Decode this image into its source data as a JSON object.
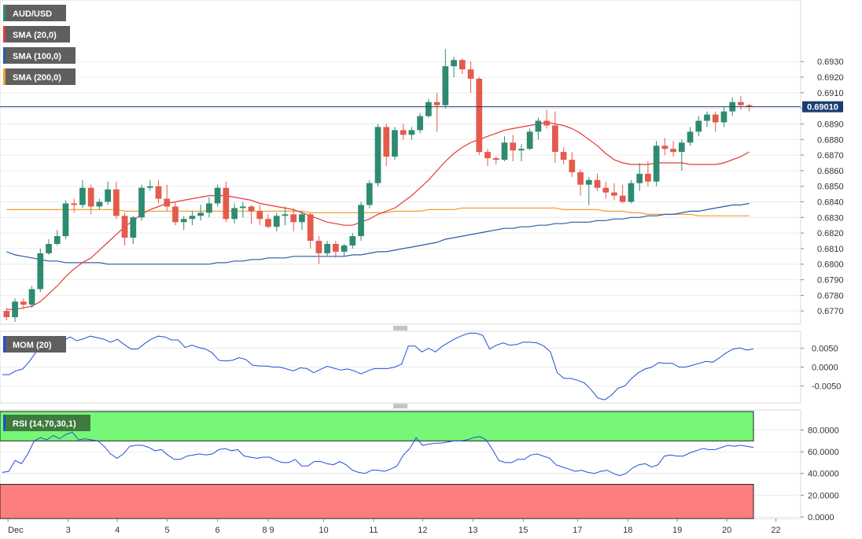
{
  "colors": {
    "up": "#2e8b72",
    "down": "#e45a4c",
    "sma20": "#e53935",
    "sma100": "#2b5aa8",
    "sma200": "#f0a030",
    "osc": "#1f4fd8",
    "grid": "#ececec",
    "rsi_over": "#76f876",
    "rsi_under": "#fd7e7e",
    "price_tag": "#1b3d72",
    "legend_bg": "#5f5f5f"
  },
  "chart_data": [
    {
      "type": "candlestick",
      "pane": "price",
      "y_ticks": [
        "0.6930",
        "0.6920",
        "0.6910",
        "0.6900",
        "0.6890",
        "0.6880",
        "0.6870",
        "0.6860",
        "0.6850",
        "0.6840",
        "0.6830",
        "0.6820",
        "0.6810",
        "0.6800",
        "0.6790",
        "0.6780",
        "0.6770"
      ],
      "ylim": [
        0.67615,
        0.69695
      ],
      "x_labels": [
        "Dec",
        "3",
        "4",
        "5",
        "6",
        "8 9",
        "10",
        "11",
        "12",
        "13",
        "15",
        "17",
        "18",
        "19",
        "20",
        "22"
      ],
      "current_price": "0.69010",
      "legend": [
        "AUD/USD",
        "SMA (20,0)",
        "SMA (100,0)",
        "SMA (200,0)"
      ],
      "candles": [
        [
          0.677,
          0.6772,
          0.6764,
          0.6766
        ],
        [
          0.6766,
          0.6778,
          0.6763,
          0.6776
        ],
        [
          0.6776,
          0.6778,
          0.6771,
          0.6774
        ],
        [
          0.6774,
          0.6786,
          0.6772,
          0.6784
        ],
        [
          0.6784,
          0.681,
          0.6782,
          0.6807
        ],
        [
          0.6807,
          0.6816,
          0.6806,
          0.6813
        ],
        [
          0.6813,
          0.6822,
          0.6812,
          0.6818
        ],
        [
          0.6818,
          0.6841,
          0.6816,
          0.6839
        ],
        [
          0.6839,
          0.6842,
          0.6833,
          0.6838
        ],
        [
          0.6838,
          0.6854,
          0.6836,
          0.6849
        ],
        [
          0.6849,
          0.6851,
          0.6832,
          0.6837
        ],
        [
          0.6837,
          0.6842,
          0.6835,
          0.684
        ],
        [
          0.684,
          0.6853,
          0.6838,
          0.6848
        ],
        [
          0.6848,
          0.6853,
          0.6829,
          0.6831
        ],
        [
          0.6831,
          0.6833,
          0.6812,
          0.6817
        ],
        [
          0.6817,
          0.6831,
          0.6813,
          0.683
        ],
        [
          0.683,
          0.6851,
          0.6828,
          0.6849
        ],
        [
          0.6849,
          0.6854,
          0.6847,
          0.685
        ],
        [
          0.685,
          0.6854,
          0.6839,
          0.6842
        ],
        [
          0.6842,
          0.6851,
          0.6834,
          0.6837
        ],
        [
          0.6837,
          0.684,
          0.6825,
          0.6827
        ],
        [
          0.6827,
          0.6831,
          0.6822,
          0.6829
        ],
        [
          0.6829,
          0.6834,
          0.6825,
          0.6831
        ],
        [
          0.6831,
          0.6838,
          0.6828,
          0.6833
        ],
        [
          0.6833,
          0.6843,
          0.683,
          0.6839
        ],
        [
          0.6839,
          0.6851,
          0.6837,
          0.6849
        ],
        [
          0.6849,
          0.6853,
          0.6827,
          0.6829
        ],
        [
          0.6829,
          0.6839,
          0.6826,
          0.6836
        ],
        [
          0.6836,
          0.684,
          0.683,
          0.6837
        ],
        [
          0.6837,
          0.6838,
          0.6826,
          0.6834
        ],
        [
          0.6834,
          0.6838,
          0.6825,
          0.6829
        ],
        [
          0.6829,
          0.6832,
          0.6823,
          0.6824
        ],
        [
          0.6824,
          0.6833,
          0.6821,
          0.6831
        ],
        [
          0.6831,
          0.6837,
          0.6825,
          0.6832
        ],
        [
          0.6832,
          0.6836,
          0.6821,
          0.6827
        ],
        [
          0.6827,
          0.6834,
          0.6822,
          0.6832
        ],
        [
          0.6832,
          0.6833,
          0.681,
          0.6815
        ],
        [
          0.6815,
          0.6818,
          0.68,
          0.6807
        ],
        [
          0.6807,
          0.6815,
          0.6805,
          0.6813
        ],
        [
          0.6813,
          0.6815,
          0.6804,
          0.6808
        ],
        [
          0.6808,
          0.6813,
          0.6805,
          0.6812
        ],
        [
          0.6812,
          0.682,
          0.681,
          0.6818
        ],
        [
          0.6818,
          0.684,
          0.6815,
          0.6838
        ],
        [
          0.6838,
          0.6854,
          0.6836,
          0.6852
        ],
        [
          0.6852,
          0.689,
          0.685,
          0.6888
        ],
        [
          0.6888,
          0.689,
          0.6863,
          0.6869
        ],
        [
          0.6869,
          0.6888,
          0.6867,
          0.6886
        ],
        [
          0.6886,
          0.689,
          0.688,
          0.6883
        ],
        [
          0.6883,
          0.6888,
          0.688,
          0.6886
        ],
        [
          0.6886,
          0.6897,
          0.6884,
          0.6895
        ],
        [
          0.6895,
          0.6906,
          0.6894,
          0.6904
        ],
        [
          0.6904,
          0.691,
          0.6885,
          0.6902
        ],
        [
          0.6902,
          0.6938,
          0.69,
          0.6927
        ],
        [
          0.6927,
          0.6933,
          0.692,
          0.6931
        ],
        [
          0.6931,
          0.6932,
          0.6922,
          0.6925
        ],
        [
          0.6925,
          0.693,
          0.691,
          0.6919
        ],
        [
          0.6919,
          0.692,
          0.687,
          0.6872
        ],
        [
          0.6872,
          0.6874,
          0.6863,
          0.6868
        ],
        [
          0.6868,
          0.6869,
          0.6864,
          0.6867
        ],
        [
          0.6867,
          0.6882,
          0.6866,
          0.6878
        ],
        [
          0.6878,
          0.6883,
          0.6866,
          0.6873
        ],
        [
          0.6873,
          0.6877,
          0.6866,
          0.6874
        ],
        [
          0.6874,
          0.6887,
          0.6873,
          0.6885
        ],
        [
          0.6885,
          0.6894,
          0.688,
          0.6892
        ],
        [
          0.6892,
          0.6899,
          0.6887,
          0.6889
        ],
        [
          0.6889,
          0.6898,
          0.6865,
          0.6872
        ],
        [
          0.6872,
          0.6875,
          0.6864,
          0.6867
        ],
        [
          0.6867,
          0.6872,
          0.6856,
          0.6859
        ],
        [
          0.6859,
          0.6861,
          0.6844,
          0.6851
        ],
        [
          0.6851,
          0.6856,
          0.6838,
          0.6854
        ],
        [
          0.6854,
          0.6858,
          0.6847,
          0.6849
        ],
        [
          0.6849,
          0.6853,
          0.6842,
          0.6846
        ],
        [
          0.6846,
          0.6852,
          0.6841,
          0.6844
        ],
        [
          0.6844,
          0.6851,
          0.6839,
          0.684
        ],
        [
          0.684,
          0.6854,
          0.6839,
          0.6852
        ],
        [
          0.6852,
          0.6865,
          0.6847,
          0.6858
        ],
        [
          0.6858,
          0.6866,
          0.685,
          0.6853
        ],
        [
          0.6853,
          0.6879,
          0.685,
          0.6876
        ],
        [
          0.6876,
          0.6881,
          0.687,
          0.6874
        ],
        [
          0.6874,
          0.6879,
          0.6869,
          0.6872
        ],
        [
          0.6872,
          0.688,
          0.686,
          0.6878
        ],
        [
          0.6878,
          0.6888,
          0.6876,
          0.6885
        ],
        [
          0.6885,
          0.6895,
          0.6882,
          0.6892
        ],
        [
          0.6892,
          0.6898,
          0.6888,
          0.6896
        ],
        [
          0.6896,
          0.6898,
          0.6885,
          0.6891
        ],
        [
          0.6891,
          0.6901,
          0.6888,
          0.6898
        ],
        [
          0.6898,
          0.6907,
          0.6895,
          0.6904
        ],
        [
          0.6904,
          0.6908,
          0.6899,
          0.6902
        ],
        [
          0.6902,
          0.6903,
          0.6898,
          0.6901
        ]
      ],
      "sma20": [
        0.6771,
        0.6771,
        0.6772,
        0.6773,
        0.6776,
        0.6781,
        0.6786,
        0.6792,
        0.6797,
        0.6801,
        0.6804,
        0.6809,
        0.6814,
        0.6819,
        0.6824,
        0.6828,
        0.6832,
        0.6835,
        0.6837,
        0.6839,
        0.684,
        0.6841,
        0.6842,
        0.6843,
        0.6844,
        0.6844,
        0.6844,
        0.6843,
        0.6842,
        0.6841,
        0.6839,
        0.6838,
        0.6837,
        0.6836,
        0.6835,
        0.6833,
        0.6831,
        0.6829,
        0.6827,
        0.6826,
        0.6825,
        0.6825,
        0.6827,
        0.6829,
        0.6832,
        0.6834,
        0.6836,
        0.684,
        0.6844,
        0.6849,
        0.6854,
        0.686,
        0.6866,
        0.6871,
        0.6875,
        0.6878,
        0.688,
        0.6882,
        0.6884,
        0.6886,
        0.6887,
        0.6888,
        0.6889,
        0.689,
        0.6891,
        0.689,
        0.6889,
        0.6887,
        0.6884,
        0.688,
        0.6876,
        0.6871,
        0.6867,
        0.6865,
        0.6864,
        0.6864,
        0.6864,
        0.6865,
        0.6865,
        0.6865,
        0.6865,
        0.6864,
        0.6864,
        0.6864,
        0.6864,
        0.6865,
        0.6867,
        0.6869,
        0.6872
      ],
      "sma100": [
        0.6808,
        0.6806,
        0.6805,
        0.6804,
        0.6803,
        0.6802,
        0.6802,
        0.6801,
        0.6801,
        0.6801,
        0.6801,
        0.6801,
        0.68,
        0.68,
        0.68,
        0.68,
        0.68,
        0.68,
        0.68,
        0.68,
        0.68,
        0.68,
        0.68,
        0.68,
        0.68,
        0.6801,
        0.6801,
        0.6802,
        0.6802,
        0.6803,
        0.6803,
        0.6804,
        0.6804,
        0.6804,
        0.6805,
        0.6805,
        0.6805,
        0.6805,
        0.6805,
        0.6805,
        0.6805,
        0.6806,
        0.6806,
        0.6807,
        0.6808,
        0.6808,
        0.6809,
        0.681,
        0.6811,
        0.6812,
        0.6813,
        0.6814,
        0.6816,
        0.6817,
        0.6818,
        0.6819,
        0.682,
        0.6821,
        0.6822,
        0.6823,
        0.6823,
        0.6824,
        0.6824,
        0.6825,
        0.6825,
        0.6826,
        0.6826,
        0.6827,
        0.6827,
        0.6827,
        0.6828,
        0.6828,
        0.6829,
        0.6829,
        0.683,
        0.683,
        0.6831,
        0.6831,
        0.6832,
        0.6832,
        0.6833,
        0.6834,
        0.6834,
        0.6835,
        0.6836,
        0.6837,
        0.6838,
        0.6838,
        0.6839
      ],
      "sma200": [
        0.6835,
        0.6835,
        0.6835,
        0.6835,
        0.6835,
        0.6835,
        0.6835,
        0.6835,
        0.6835,
        0.6835,
        0.6835,
        0.6835,
        0.6835,
        0.6835,
        0.6834,
        0.6834,
        0.6834,
        0.6834,
        0.6834,
        0.6834,
        0.6834,
        0.6834,
        0.6834,
        0.6834,
        0.6834,
        0.6834,
        0.6834,
        0.6834,
        0.6834,
        0.6834,
        0.6834,
        0.6834,
        0.6834,
        0.6834,
        0.6834,
        0.6834,
        0.6833,
        0.6833,
        0.6833,
        0.6833,
        0.6833,
        0.6833,
        0.6833,
        0.6833,
        0.6833,
        0.6833,
        0.6834,
        0.6834,
        0.6834,
        0.6834,
        0.6835,
        0.6835,
        0.6835,
        0.6835,
        0.6836,
        0.6836,
        0.6836,
        0.6836,
        0.6836,
        0.6836,
        0.6836,
        0.6836,
        0.6836,
        0.6836,
        0.6836,
        0.6836,
        0.6835,
        0.6835,
        0.6835,
        0.6835,
        0.6835,
        0.6834,
        0.6834,
        0.6834,
        0.6833,
        0.6833,
        0.6832,
        0.6832,
        0.6832,
        0.6832,
        0.6832,
        0.6832,
        0.6831,
        0.6831,
        0.6831,
        0.6831,
        0.6831,
        0.6831,
        0.6831
      ]
    },
    {
      "type": "line",
      "pane": "momentum",
      "legend": "MOM (20)",
      "y_ticks": [
        "0.0050",
        "0.0000",
        "-0.0050"
      ],
      "ylim": [
        -0.0095,
        0.0095
      ],
      "values": [
        -0.002,
        -0.002,
        -0.001,
        -0.0005,
        0.0015,
        0.004,
        0.005,
        0.0058,
        0.0062,
        0.007,
        0.008,
        0.007,
        0.0075,
        0.0082,
        0.0078,
        0.0074,
        0.0066,
        0.0074,
        0.006,
        0.0048,
        0.0048,
        0.0062,
        0.0074,
        0.0082,
        0.008,
        0.0072,
        0.0072,
        0.0052,
        0.0058,
        0.0052,
        0.0048,
        0.0038,
        0.0018,
        0.0016,
        0.0018,
        0.0025,
        0.002,
        0.0005,
        0.0003,
        0.0003,
        0.0,
        0.0,
        -0.0005,
        -0.001,
        -0.0002,
        -0.0004,
        -0.0015,
        -0.0006,
        0.0002,
        -0.0003,
        -0.0008,
        -0.0005,
        -0.001,
        -0.0018,
        -0.001,
        -0.0004,
        -0.0004,
        -0.0004,
        0.0,
        0.0008,
        0.0056,
        0.0056,
        0.004,
        0.005,
        0.004,
        0.0055,
        0.0066,
        0.0076,
        0.0084,
        0.009,
        0.009,
        0.0084,
        0.0048,
        0.0058,
        0.0064,
        0.0058,
        0.006,
        0.0066,
        0.0066,
        0.0064,
        0.0056,
        0.004,
        -0.0015,
        -0.003,
        -0.003,
        -0.0035,
        -0.0042,
        -0.006,
        -0.0082,
        -0.0087,
        -0.0075,
        -0.0056,
        -0.005,
        -0.003,
        -0.0015,
        -0.0005,
        0.0,
        0.0012,
        0.001,
        0.001,
        0.0,
        0.0,
        0.0005,
        0.001,
        0.0015,
        0.0013,
        0.0025,
        0.0038,
        0.0048,
        0.0051,
        0.0045,
        0.0048
      ]
    },
    {
      "type": "line",
      "pane": "rsi",
      "legend": "RSI (14,70,30,1)",
      "y_ticks": [
        "80.0000",
        "60.0000",
        "40.0000",
        "20.0000",
        "0.0000"
      ],
      "ylim": [
        -1.5,
        98.5
      ],
      "overbought": 70,
      "oversold": 30,
      "values": [
        41,
        42,
        52,
        49,
        58,
        70,
        73,
        71,
        75,
        72,
        76,
        78,
        71,
        72,
        71,
        70,
        65,
        58,
        54,
        58,
        65,
        66,
        66,
        64,
        61,
        62,
        57,
        53,
        53,
        56,
        57,
        58,
        57,
        58,
        62,
        63,
        61,
        62,
        56,
        55,
        54,
        55,
        55,
        52,
        50,
        50,
        53,
        47,
        47,
        51,
        51,
        49,
        48,
        51,
        48,
        43,
        41,
        40,
        43,
        43,
        42,
        44,
        47,
        57,
        63,
        73,
        66,
        67,
        68,
        68,
        69,
        70,
        70,
        71,
        73,
        74,
        71,
        62,
        52,
        50,
        50,
        53,
        53,
        57,
        58,
        56,
        54,
        48,
        46,
        44,
        42,
        43,
        41,
        40,
        42,
        43,
        40,
        38,
        40,
        45,
        48,
        49,
        46,
        48,
        56,
        57,
        56,
        56,
        59,
        61,
        63,
        62,
        62,
        64,
        66,
        65,
        66,
        65,
        64
      ],
      "note_points": 119
    }
  ]
}
